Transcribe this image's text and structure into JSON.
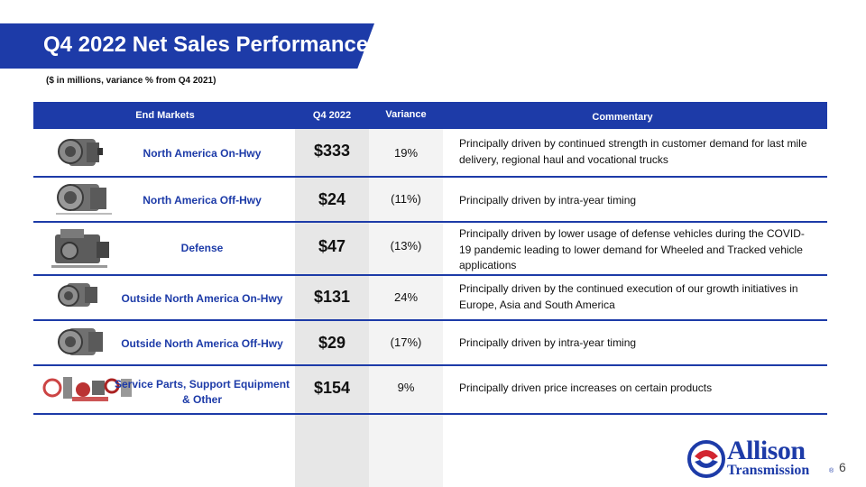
{
  "slide": {
    "title": "Q4 2022 Net Sales Performance",
    "subtitle": "($ in millions, variance % from Q4 2021)",
    "page_number": "6"
  },
  "table": {
    "headers": {
      "end_markets": "End Markets",
      "q4": "Q4 2022",
      "variance": "Variance",
      "commentary": "Commentary"
    },
    "rows": [
      {
        "market": "North America On-Hwy",
        "q4": "$333",
        "variance": "19%",
        "commentary": "Principally driven by continued strength in customer demand for last mile delivery, regional haul and vocational trucks",
        "image_icon": "transmission-icon"
      },
      {
        "market": "North America Off-Hwy",
        "q4": "$24",
        "variance": "(11%)",
        "commentary": "Principally driven by intra-year timing",
        "image_icon": "transmission-icon"
      },
      {
        "market": "Defense",
        "q4": "$47",
        "variance": "(13%)",
        "commentary": "Principally driven by lower usage of defense vehicles during the COVID-19 pandemic leading to lower demand for Wheeled and Tracked vehicle applications",
        "image_icon": "transmission-icon"
      },
      {
        "market": "Outside North America On-Hwy",
        "q4": "$131",
        "variance": "24%",
        "commentary": "Principally driven by the continued execution of our growth initiatives in Europe, Asia and South America",
        "image_icon": "transmission-icon"
      },
      {
        "market": "Outside North America Off-Hwy",
        "q4": "$29",
        "variance": "(17%)",
        "commentary": "Principally driven by intra-year timing",
        "image_icon": "transmission-icon"
      },
      {
        "market": "Service Parts, Support Equipment & Other",
        "q4": "$154",
        "variance": "9%",
        "commentary": "Principally driven price increases on certain products",
        "image_icon": "parts-icon"
      }
    ]
  },
  "logo": {
    "line1": "Allison",
    "line2": "Transmission",
    "reg": "®"
  },
  "colors": {
    "brand_blue": "#1d3ba8",
    "logo_red": "#d22630"
  }
}
